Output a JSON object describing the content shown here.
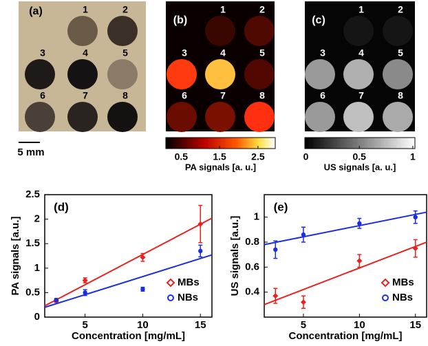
{
  "image_panels": [
    {
      "label": "(a)",
      "well_labels": [
        "1",
        "2",
        "3",
        "4",
        "5",
        "6",
        "7",
        "8"
      ]
    },
    {
      "label": "(b)",
      "well_labels": [
        "1",
        "2",
        "3",
        "4",
        "5",
        "6",
        "7",
        "8"
      ]
    },
    {
      "label": "(c)",
      "well_labels": [
        "1",
        "2",
        "3",
        "4",
        "5",
        "6",
        "7",
        "8"
      ]
    }
  ],
  "scale_bar": "5 mm",
  "colorbars": [
    {
      "label": "PA signals [a. u.]",
      "lim": [
        0.1,
        2.95
      ],
      "ticks": [
        0.5,
        1.5,
        2.5
      ]
    },
    {
      "label": "US signals [a. u.]",
      "lim": [
        -0.01,
        1.02
      ],
      "ticks": [
        0,
        0.5,
        1
      ]
    }
  ],
  "chart_data": [
    {
      "type": "scatter",
      "label": "(d)",
      "xlabel": "Concentration [mg/mL]",
      "ylabel": "PA signals [a.u.]",
      "xlim": [
        1.5,
        16
      ],
      "ylim": [
        0,
        2.5
      ],
      "xticks": [
        5,
        10,
        15
      ],
      "yticks": [
        0,
        0.5,
        1,
        1.5,
        2,
        2.5
      ],
      "legend": "lower right",
      "series": [
        {
          "name": "MBs",
          "color": "#e8231f",
          "marker": "diamond",
          "x": [
            2.5,
            5,
            10,
            15
          ],
          "values": [
            0.33,
            0.75,
            1.22,
            1.9
          ],
          "errors": [
            0.03,
            0.05,
            0.08,
            0.38
          ],
          "fit": {
            "x": [
              1.5,
              16
            ],
            "values": [
              0.23,
              2.02
            ]
          }
        },
        {
          "name": "NBs",
          "color": "#1a2ee0",
          "marker": "circle",
          "x": [
            2.5,
            5,
            10,
            15
          ],
          "values": [
            0.35,
            0.5,
            0.57,
            1.35
          ],
          "errors": [
            0.03,
            0.06,
            0.04,
            0.12
          ],
          "fit": {
            "x": [
              1.5,
              16
            ],
            "values": [
              0.2,
              1.27
            ]
          }
        }
      ]
    },
    {
      "type": "scatter",
      "label": "(e)",
      "xlabel": "Concentration [mg/mL]",
      "ylabel": "US signals [a.u.]",
      "xlim": [
        1.5,
        16
      ],
      "ylim": [
        0.2,
        1.18
      ],
      "xticks": [
        5,
        10,
        15
      ],
      "yticks": [
        0.4,
        0.6,
        0.8,
        1
      ],
      "legend": "lower right",
      "series": [
        {
          "name": "MBs",
          "color": "#e8231f",
          "marker": "diamond",
          "x": [
            2.5,
            5,
            10,
            15
          ],
          "values": [
            0.37,
            0.32,
            0.65,
            0.75
          ],
          "errors": [
            0.06,
            0.05,
            0.05,
            0.07
          ],
          "fit": {
            "x": [
              1.5,
              16
            ],
            "values": [
              0.3,
              0.8
            ]
          }
        },
        {
          "name": "NBs",
          "color": "#1a2ee0",
          "marker": "circle",
          "x": [
            2.5,
            5,
            10,
            15
          ],
          "values": [
            0.74,
            0.86,
            0.95,
            1.0
          ],
          "errors": [
            0.07,
            0.06,
            0.04,
            0.05
          ],
          "fit": {
            "x": [
              1.5,
              16
            ],
            "values": [
              0.78,
              1.04
            ]
          }
        }
      ]
    }
  ]
}
